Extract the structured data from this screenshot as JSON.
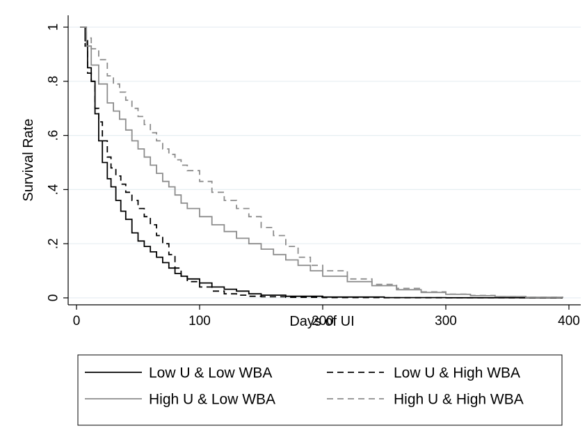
{
  "chart_data": {
    "type": "line",
    "title": "",
    "xlabel": "Days of UI",
    "ylabel": "Survival Rate",
    "xlim": [
      0,
      400
    ],
    "ylim": [
      0,
      1
    ],
    "x_ticks": [
      0,
      100,
      200,
      300,
      400
    ],
    "x_tick_labels": [
      "0",
      "100",
      "200",
      "300",
      "400"
    ],
    "y_ticks": [
      0,
      0.2,
      0.4,
      0.6,
      0.8,
      1
    ],
    "y_tick_labels": [
      "0",
      ".2",
      ".4",
      ".6",
      ".8",
      "1"
    ],
    "grid": "horizontal",
    "legend_position": "bottom",
    "series": [
      {
        "name": "Low U & Low WBA",
        "color": "#000000",
        "dash": "solid",
        "x": [
          3,
          7,
          9,
          12,
          15,
          18,
          21,
          25,
          28,
          32,
          36,
          40,
          45,
          50,
          55,
          60,
          65,
          70,
          75,
          80,
          85,
          90,
          100,
          110,
          120,
          130,
          140,
          150,
          170,
          200,
          250,
          300,
          350,
          395
        ],
        "y": [
          1.0,
          0.95,
          0.85,
          0.8,
          0.68,
          0.58,
          0.5,
          0.44,
          0.41,
          0.36,
          0.32,
          0.29,
          0.24,
          0.21,
          0.19,
          0.17,
          0.15,
          0.13,
          0.11,
          0.09,
          0.08,
          0.07,
          0.055,
          0.04,
          0.032,
          0.025,
          0.015,
          0.01,
          0.006,
          0.003,
          0.001,
          0.0005,
          0.0002,
          0.0
        ]
      },
      {
        "name": "Low U & High WBA",
        "color": "#000000",
        "dash": "dashed",
        "x": [
          3,
          7,
          9,
          12,
          15,
          18,
          21,
          25,
          28,
          32,
          36,
          40,
          45,
          50,
          55,
          60,
          65,
          70,
          75,
          80,
          85,
          90,
          100,
          110,
          120,
          130,
          140,
          150,
          170,
          200,
          250,
          300,
          350,
          395
        ],
        "y": [
          1.0,
          0.93,
          0.83,
          0.8,
          0.7,
          0.65,
          0.58,
          0.52,
          0.48,
          0.45,
          0.42,
          0.39,
          0.36,
          0.33,
          0.3,
          0.27,
          0.23,
          0.2,
          0.16,
          0.11,
          0.08,
          0.06,
          0.04,
          0.025,
          0.015,
          0.01,
          0.006,
          0.004,
          0.002,
          0.001,
          0.0005,
          0.0002,
          0.0001,
          0.0
        ]
      },
      {
        "name": "High U & Low WBA",
        "color": "#8c8c8c",
        "dash": "solid",
        "x": [
          3,
          8,
          12,
          18,
          25,
          30,
          35,
          40,
          45,
          50,
          55,
          60,
          65,
          70,
          75,
          80,
          85,
          90,
          100,
          110,
          120,
          130,
          140,
          150,
          160,
          170,
          180,
          190,
          200,
          220,
          240,
          260,
          280,
          300,
          320,
          340,
          365,
          395
        ],
        "y": [
          1.0,
          0.93,
          0.86,
          0.79,
          0.72,
          0.69,
          0.66,
          0.62,
          0.58,
          0.55,
          0.52,
          0.49,
          0.46,
          0.43,
          0.41,
          0.38,
          0.35,
          0.33,
          0.3,
          0.27,
          0.245,
          0.22,
          0.2,
          0.18,
          0.16,
          0.14,
          0.12,
          0.1,
          0.08,
          0.06,
          0.045,
          0.03,
          0.02,
          0.013,
          0.008,
          0.005,
          0.002,
          0.0
        ]
      },
      {
        "name": "High U & High WBA",
        "color": "#8c8c8c",
        "dash": "dashed",
        "x": [
          3,
          8,
          12,
          18,
          25,
          30,
          35,
          40,
          45,
          50,
          55,
          60,
          65,
          70,
          75,
          80,
          85,
          90,
          100,
          110,
          120,
          130,
          140,
          150,
          160,
          170,
          180,
          190,
          200,
          220,
          240,
          260,
          280,
          300,
          320,
          340,
          365,
          395
        ],
        "y": [
          1.0,
          0.96,
          0.92,
          0.88,
          0.82,
          0.79,
          0.76,
          0.73,
          0.7,
          0.67,
          0.64,
          0.61,
          0.58,
          0.55,
          0.53,
          0.51,
          0.49,
          0.47,
          0.43,
          0.39,
          0.36,
          0.33,
          0.3,
          0.26,
          0.23,
          0.19,
          0.15,
          0.12,
          0.1,
          0.07,
          0.05,
          0.035,
          0.022,
          0.014,
          0.009,
          0.005,
          0.002,
          0.0
        ]
      }
    ]
  }
}
